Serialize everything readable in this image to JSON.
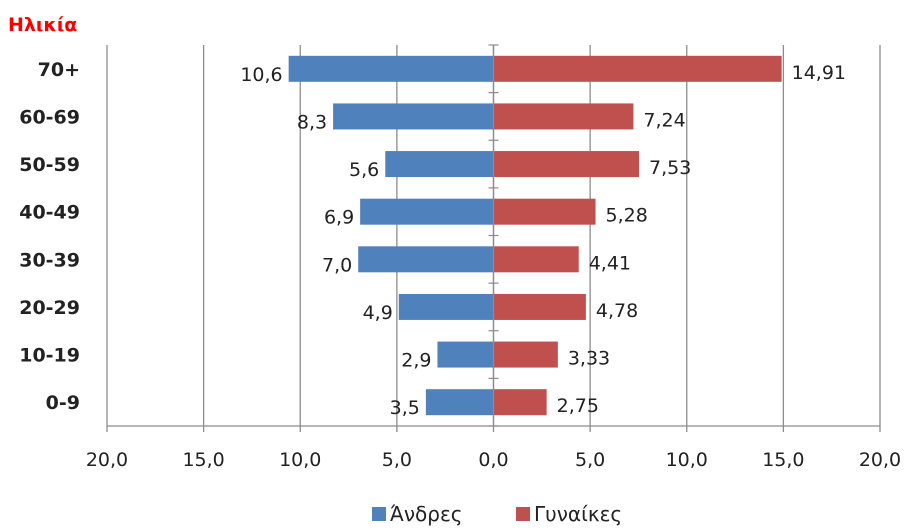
{
  "title": "Ηλικία",
  "legend": [
    {
      "label": "Άνδρες",
      "color": "#4f81bd"
    },
    {
      "label": "Γυναίκες",
      "color": "#c0504d"
    }
  ],
  "chart_data": {
    "type": "bar",
    "orientation": "horizontal",
    "layout": "population-pyramid",
    "title": "Ηλικία",
    "categories": [
      "70+",
      "60-69",
      "50-59",
      "40-49",
      "30-39",
      "20-29",
      "10-19",
      "0-9"
    ],
    "series": [
      {
        "name": "Άνδρες",
        "color": "#4f81bd",
        "side": "left",
        "values": [
          10.6,
          8.3,
          5.6,
          6.9,
          7.0,
          4.9,
          2.9,
          3.5
        ],
        "labels": [
          "10,6",
          "8,3",
          "5,6",
          "6,9",
          "7,0",
          "4,9",
          "2,9",
          "3,5"
        ]
      },
      {
        "name": "Γυναίκες",
        "color": "#c0504d",
        "side": "right",
        "values": [
          14.91,
          7.24,
          7.53,
          5.28,
          4.41,
          4.78,
          3.33,
          2.75
        ],
        "labels": [
          "14,91",
          "7,24",
          "7,53",
          "5,28",
          "4,41",
          "4,78",
          "3,33",
          "2,75"
        ]
      }
    ],
    "xlim": [
      -20,
      20
    ],
    "xticks": [
      -20,
      -15,
      -10,
      -5,
      0,
      5,
      10,
      15,
      20
    ],
    "xtick_labels": [
      "20,0",
      "15,0",
      "10,0",
      "5,0",
      "0,0",
      "5,0",
      "10,0",
      "15,0",
      "20,0"
    ],
    "grid": "vertical",
    "legend_position": "bottom"
  }
}
